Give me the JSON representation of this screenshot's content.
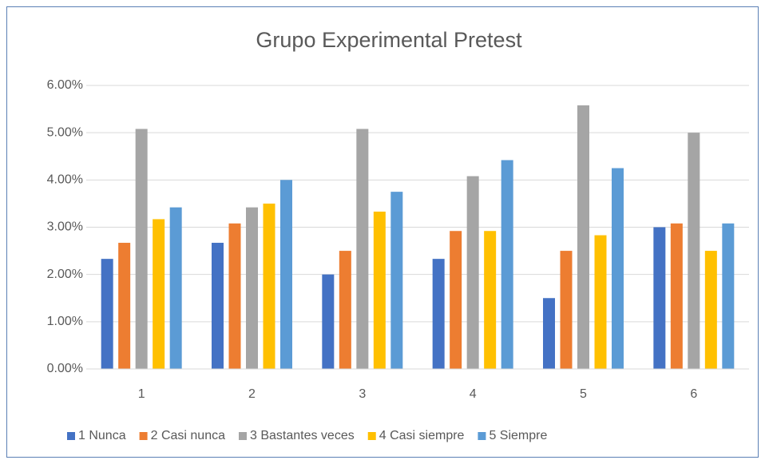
{
  "chart_data": {
    "type": "bar",
    "title": "Grupo Experimental Pretest",
    "categories": [
      "1",
      "2",
      "3",
      "4",
      "5",
      "6"
    ],
    "series": [
      {
        "name": "1 Nunca",
        "color": "#4472c4",
        "values": [
          2.33,
          2.67,
          2.0,
          2.33,
          1.5,
          3.0
        ]
      },
      {
        "name": "2 Casi nunca",
        "color": "#ed7d31",
        "values": [
          2.67,
          3.08,
          2.5,
          2.92,
          2.5,
          3.08
        ]
      },
      {
        "name": "3 Bastantes veces",
        "color": "#a5a5a5",
        "values": [
          5.08,
          3.42,
          5.08,
          4.08,
          5.58,
          5.0
        ]
      },
      {
        "name": "4 Casi siempre",
        "color": "#ffc000",
        "values": [
          3.17,
          3.5,
          3.33,
          2.92,
          2.83,
          2.5
        ]
      },
      {
        "name": "5 Siempre",
        "color": "#5b9bd5",
        "values": [
          3.42,
          4.0,
          3.75,
          4.42,
          4.25,
          3.08
        ]
      }
    ],
    "ylim": [
      0,
      6
    ],
    "yticks": [
      {
        "value": 0,
        "label": "0.00%"
      },
      {
        "value": 1,
        "label": "1.00%"
      },
      {
        "value": 2,
        "label": "2.00%"
      },
      {
        "value": 3,
        "label": "3.00%"
      },
      {
        "value": 4,
        "label": "4.00%"
      },
      {
        "value": 5,
        "label": "5.00%"
      },
      {
        "value": 6,
        "label": "6.00%"
      }
    ],
    "grid": true,
    "legend": "bottom"
  }
}
